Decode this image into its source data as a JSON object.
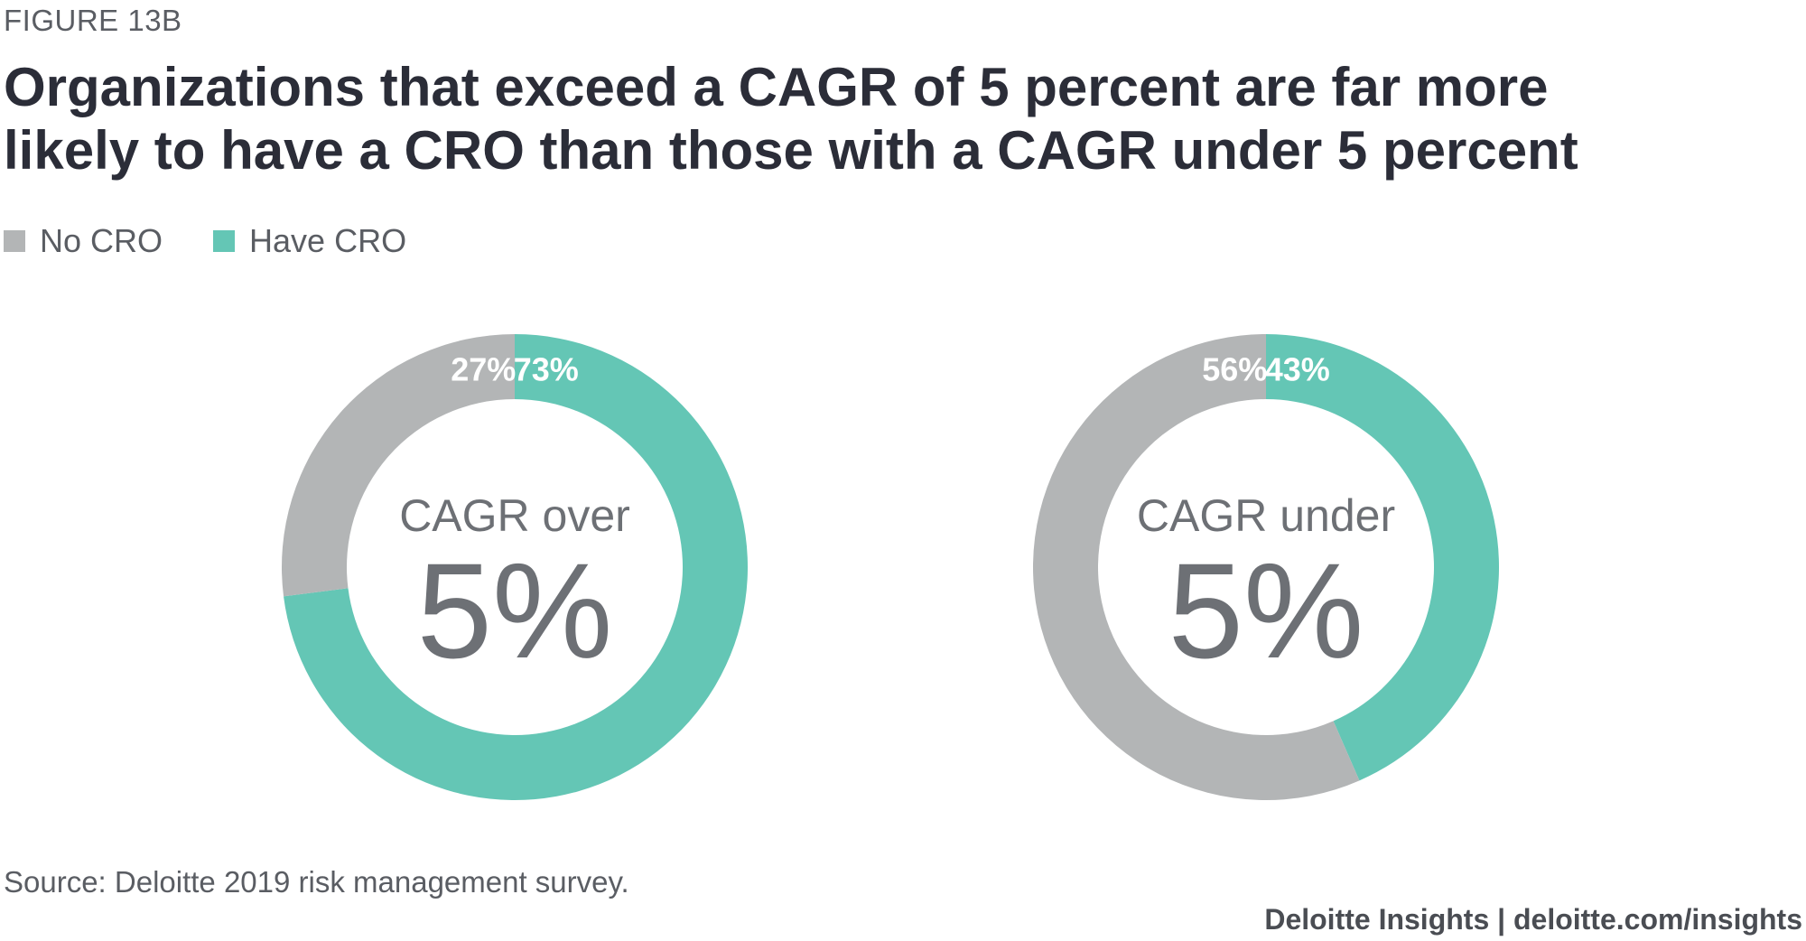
{
  "header": {
    "figure_label": "FIGURE 13B",
    "title": "Organizations that exceed a CAGR of 5 percent are far more likely to have a CRO than those with a CAGR under 5 percent"
  },
  "legend": {
    "items": [
      {
        "label": "No CRO",
        "color": "#b3b5b6"
      },
      {
        "label": "Have CRO",
        "color": "#64c6b5"
      }
    ]
  },
  "chart_data": [
    {
      "type": "pie",
      "variant": "donut",
      "center_label_top": "CAGR over",
      "center_label_big": "5%",
      "slices": [
        {
          "name": "No CRO",
          "value": 27,
          "label": "27%",
          "color": "#b3b5b6"
        },
        {
          "name": "Have CRO",
          "value": 73,
          "label": "73%",
          "color": "#64c6b5"
        }
      ]
    },
    {
      "type": "pie",
      "variant": "donut",
      "center_label_top": "CAGR under",
      "center_label_big": "5%",
      "slices": [
        {
          "name": "No CRO",
          "value": 56,
          "label": "56%",
          "color": "#b3b5b6"
        },
        {
          "name": "Have CRO",
          "value": 43,
          "label": "43%",
          "color": "#64c6b5"
        }
      ]
    }
  ],
  "footer": {
    "source": "Source: Deloitte 2019 risk management survey.",
    "credit": "Deloitte Insights | deloitte.com/insights"
  }
}
